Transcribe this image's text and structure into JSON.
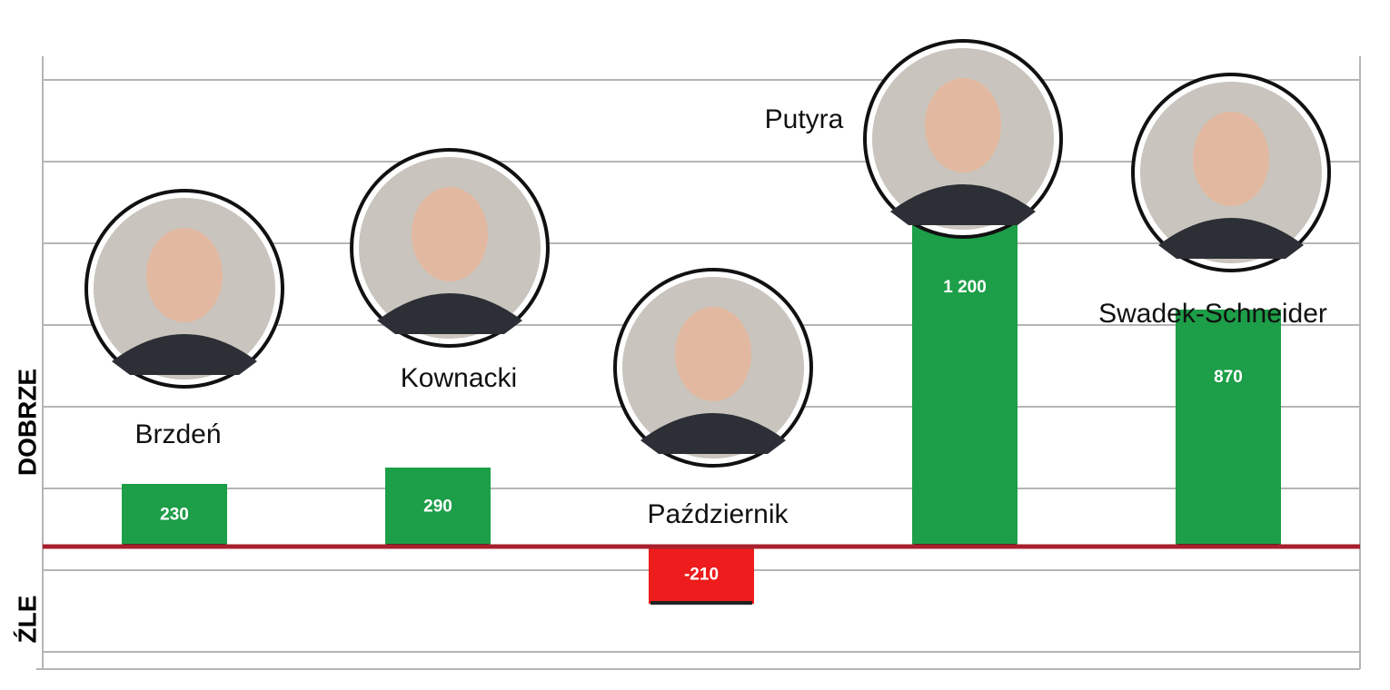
{
  "chart_data": {
    "type": "bar",
    "categories": [
      "Brzdeń",
      "Kownacki",
      "Październik",
      "Putyra",
      "Swadek-Schneider"
    ],
    "values": [
      230,
      290,
      -210,
      1200,
      870
    ],
    "value_labels": [
      "230",
      "290",
      "-210",
      "1 200",
      "870"
    ],
    "positive_label": "DOBRZE",
    "negative_label": "ŹLE",
    "positive_color": "#1d9e48",
    "negative_color": "#ee1c1c",
    "ylim": [
      -450,
      1800
    ]
  }
}
